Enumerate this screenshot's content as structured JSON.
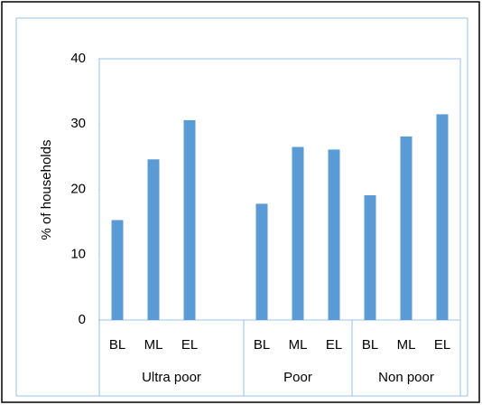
{
  "chart_data": {
    "type": "bar",
    "y_label": "% of households",
    "color": "#5b9bd5",
    "ylim": [
      0,
      40
    ],
    "yticks": [
      0,
      10,
      20,
      30,
      40
    ],
    "groups": [
      {
        "name": "Ultra poor",
        "categories": [
          "BL",
          "ML",
          "EL",
          null
        ],
        "values": [
          15.3,
          24.6,
          30.6,
          null
        ]
      },
      {
        "name": "Poor",
        "categories": [
          "BL",
          "ML",
          "EL"
        ],
        "values": [
          17.8,
          26.5,
          26.1
        ]
      },
      {
        "name": "Non poor",
        "categories": [
          "BL",
          "ML",
          "EL"
        ],
        "values": [
          19.1,
          28.1,
          31.5
        ]
      }
    ]
  }
}
